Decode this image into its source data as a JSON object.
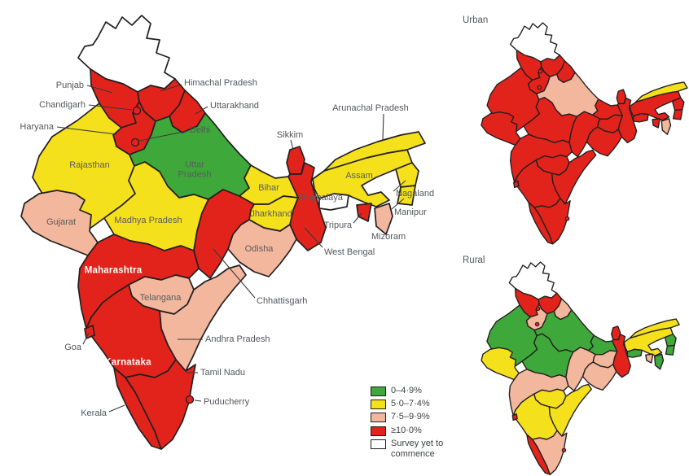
{
  "figure": {
    "type": "choropleth-map",
    "region": "India",
    "panels": [
      "overall",
      "urban",
      "rural"
    ]
  },
  "maps": {
    "urban": {
      "title": "Urban"
    },
    "rural": {
      "title": "Rural"
    }
  },
  "legend": {
    "items": [
      {
        "key": "c1",
        "label": "0–4·9%",
        "color": "#3fa83a"
      },
      {
        "key": "c2",
        "label": "5·0–7·4%",
        "color": "#f5e01c"
      },
      {
        "key": "c3",
        "label": "7·5–9·9%",
        "color": "#f2b79c"
      },
      {
        "key": "c4",
        "label": "≥10·0%",
        "color": "#e2231b"
      },
      {
        "key": "na",
        "label": "Survey yet to commence",
        "color": "#ffffff"
      }
    ]
  },
  "states": [
    {
      "id": "jammu_kashmir",
      "name": "",
      "overall": "na",
      "urban": "na",
      "rural": "na"
    },
    {
      "id": "punjab",
      "name": "Punjab",
      "overall": "c4",
      "urban": "c4",
      "rural": "c4"
    },
    {
      "id": "himachal_pradesh",
      "name": "Himachal Pradesh",
      "overall": "c4",
      "urban": "c4",
      "rural": "c4"
    },
    {
      "id": "uttarakhand",
      "name": "Uttarakhand",
      "overall": "c4",
      "urban": "c4",
      "rural": "c3"
    },
    {
      "id": "haryana",
      "name": "Haryana",
      "overall": "c4",
      "urban": "c4",
      "rural": "c3"
    },
    {
      "id": "rajasthan",
      "name": "Rajasthan",
      "overall": "c2",
      "urban": "c4",
      "rural": "c1"
    },
    {
      "id": "uttar_pradesh",
      "name": "Uttar Pradesh",
      "overall": "c1",
      "urban": "c3",
      "rural": "c1"
    },
    {
      "id": "madhya_pradesh",
      "name": "Madhya Pradesh",
      "overall": "c2",
      "urban": "c4",
      "rural": "c1"
    },
    {
      "id": "gujarat",
      "name": "Gujarat",
      "overall": "c3",
      "urban": "c4",
      "rural": "c2"
    },
    {
      "id": "bihar",
      "name": "Bihar",
      "overall": "c2",
      "urban": "c4",
      "rural": "c1"
    },
    {
      "id": "sikkim",
      "name": "Sikkim",
      "overall": "c4",
      "urban": "c4",
      "rural": "c4"
    },
    {
      "id": "west_bengal",
      "name": "West Bengal",
      "overall": "c4",
      "urban": "c4",
      "rural": "c4"
    },
    {
      "id": "assam",
      "name": "Assam",
      "overall": "c2",
      "urban": "c4",
      "rural": "c2"
    },
    {
      "id": "arunachal_pradesh",
      "name": "Arunachal Pradesh",
      "overall": "c2",
      "urban": "c2",
      "rural": "c2"
    },
    {
      "id": "meghalaya",
      "name": "Meghalaya",
      "overall": "na",
      "urban": "c4",
      "rural": "c1"
    },
    {
      "id": "nagaland",
      "name": "Nagaland",
      "overall": "c2",
      "urban": "c4",
      "rural": "c1"
    },
    {
      "id": "manipur",
      "name": "Manipur",
      "overall": "c2",
      "urban": "c4",
      "rural": "c1"
    },
    {
      "id": "mizoram",
      "name": "Mizoram",
      "overall": "c3",
      "urban": "c3",
      "rural": "c1"
    },
    {
      "id": "tripura",
      "name": "Tripura",
      "overall": "c4",
      "urban": "c4",
      "rural": "c3"
    },
    {
      "id": "jharkhand",
      "name": "Jharkhand",
      "overall": "c2",
      "urban": "c4",
      "rural": "c3"
    },
    {
      "id": "odisha",
      "name": "Odisha",
      "overall": "c3",
      "urban": "c4",
      "rural": "c3"
    },
    {
      "id": "chhattisgarh",
      "name": "Chhattisgarh",
      "overall": "c4",
      "urban": "c4",
      "rural": "c3"
    },
    {
      "id": "maharashtra",
      "name": "Maharashtra",
      "overall": "c4",
      "urban": "c4",
      "rural": "c3"
    },
    {
      "id": "telangana",
      "name": "Telangana",
      "overall": "c3",
      "urban": "c4",
      "rural": "c2"
    },
    {
      "id": "andhra_pradesh",
      "name": "Andhra Pradesh",
      "overall": "c3",
      "urban": "c4",
      "rural": "c2"
    },
    {
      "id": "karnataka",
      "name": "Karnataka",
      "overall": "c4",
      "urban": "c4",
      "rural": "c2"
    },
    {
      "id": "goa",
      "name": "Goa",
      "overall": "c4",
      "urban": "c4",
      "rural": "c4"
    },
    {
      "id": "kerala",
      "name": "Kerala",
      "overall": "c4",
      "urban": "c4",
      "rural": "c4"
    },
    {
      "id": "tamil_nadu",
      "name": "Tamil Nadu",
      "overall": "c4",
      "urban": "c4",
      "rural": "c3"
    },
    {
      "id": "chandigarh",
      "name": "Chandigarh",
      "overall": "c4",
      "urban": "c4",
      "rural": "c4"
    },
    {
      "id": "delhi",
      "name": "Delhi",
      "overall": "c4",
      "urban": "c4",
      "rural": "c4"
    },
    {
      "id": "puducherry",
      "name": "Puducherry",
      "overall": "c4",
      "urban": "c4",
      "rural": "c4"
    }
  ]
}
